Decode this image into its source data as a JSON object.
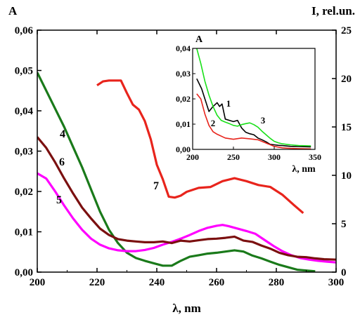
{
  "chart_data": [
    {
      "type": "line",
      "x_label": "λ, nm",
      "y_label_left": "A",
      "y_label_right": "I, rel.un.",
      "xlim": [
        200,
        300
      ],
      "ylim_left": [
        0,
        0.06
      ],
      "ylim_right": [
        0,
        25
      ],
      "x_ticks": [
        "200",
        "220",
        "240",
        "260",
        "280",
        "300"
      ],
      "y_ticks_left": [
        "0,00",
        "0,01",
        "0,02",
        "0,03",
        "0,04",
        "0,05",
        "0,06"
      ],
      "y_ticks_right": [
        "0",
        "5",
        "10",
        "15",
        "20",
        "25"
      ],
      "series": [
        {
          "name": "4",
          "axis": "left",
          "color": "#1a7a1a",
          "x": [
            200,
            203,
            206,
            209,
            212,
            215,
            218,
            221,
            224,
            227,
            230,
            233,
            236,
            239,
            242,
            245,
            248,
            251,
            254,
            257,
            260,
            263,
            266,
            269,
            272,
            275,
            278,
            281,
            284,
            287,
            290,
            293
          ],
          "y": [
            0.0495,
            0.045,
            0.0405,
            0.036,
            0.031,
            0.026,
            0.0205,
            0.015,
            0.0105,
            0.0072,
            0.0048,
            0.0035,
            0.0028,
            0.0022,
            0.0016,
            0.0016,
            0.0028,
            0.0038,
            0.0042,
            0.0046,
            0.0048,
            0.0051,
            0.0054,
            0.0051,
            0.0041,
            0.0034,
            0.0026,
            0.0018,
            0.0012,
            0.0006,
            0.0004,
            0.0002
          ]
        },
        {
          "name": "5",
          "axis": "left",
          "color": "#ff00ff",
          "x": [
            200,
            203,
            206,
            209,
            212,
            215,
            218,
            221,
            224,
            227,
            230,
            233,
            236,
            239,
            242,
            245,
            248,
            251,
            254,
            257,
            260,
            262,
            264,
            267,
            270,
            273,
            276,
            279,
            282,
            285,
            288,
            291,
            294,
            297,
            300
          ],
          "y": [
            0.0245,
            0.0232,
            0.02,
            0.0165,
            0.0133,
            0.0105,
            0.0083,
            0.0068,
            0.0059,
            0.0054,
            0.0052,
            0.0052,
            0.0055,
            0.006,
            0.0068,
            0.0075,
            0.0083,
            0.0092,
            0.0102,
            0.011,
            0.0115,
            0.0117,
            0.0114,
            0.0108,
            0.0102,
            0.0095,
            0.008,
            0.0065,
            0.0052,
            0.0042,
            0.0035,
            0.0031,
            0.0028,
            0.0026,
            0.0024
          ]
        },
        {
          "name": "6",
          "axis": "left",
          "color": "#7b1010",
          "x": [
            200,
            203,
            206,
            209,
            212,
            215,
            218,
            221,
            224,
            227,
            230,
            233,
            236,
            239,
            242,
            245,
            248,
            251,
            254,
            257,
            260,
            263,
            266,
            269,
            272,
            275,
            278,
            281,
            284,
            287,
            290,
            293,
            296,
            300
          ],
          "y": [
            0.0335,
            0.0308,
            0.0272,
            0.0232,
            0.0195,
            0.016,
            0.0133,
            0.0108,
            0.0092,
            0.0082,
            0.0078,
            0.0076,
            0.0074,
            0.0074,
            0.0076,
            0.0072,
            0.0078,
            0.0076,
            0.0079,
            0.0082,
            0.0083,
            0.0085,
            0.0088,
            0.0078,
            0.0075,
            0.0066,
            0.0058,
            0.0048,
            0.0042,
            0.0038,
            0.0037,
            0.0034,
            0.0032,
            0.0031
          ]
        },
        {
          "name": "7",
          "axis": "right",
          "color": "#e8241c",
          "x": [
            220,
            222,
            224,
            226,
            228,
            230,
            232,
            234,
            236,
            238,
            240,
            242,
            244,
            246,
            248,
            250,
            254,
            258,
            262,
            266,
            270,
            274,
            278,
            282,
            286,
            289
          ],
          "y": [
            19.3,
            19.7,
            19.8,
            19.8,
            19.8,
            18.5,
            17.3,
            16.8,
            15.6,
            13.7,
            11.1,
            9.6,
            7.8,
            7.7,
            7.9,
            8.3,
            8.7,
            8.8,
            9.4,
            9.7,
            9.4,
            9.0,
            8.8,
            8.0,
            6.9,
            6.1
          ]
        }
      ],
      "curve_labels": [
        "4",
        "5",
        "6",
        "7"
      ]
    },
    {
      "type": "line",
      "inset": true,
      "x_label": "λ, nm",
      "y_label": "A",
      "xlim": [
        200,
        350
      ],
      "ylim": [
        0,
        0.04
      ],
      "x_ticks": [
        "200",
        "250",
        "300",
        "350"
      ],
      "y_ticks": [
        "0,00",
        "0,01",
        "0,02",
        "0,03",
        "0,04"
      ],
      "series": [
        {
          "name": "1",
          "color": "#000000",
          "x": [
            205,
            208,
            211,
            215,
            220,
            225,
            230,
            233,
            236,
            240,
            245,
            250,
            255,
            260,
            265,
            270,
            275,
            280,
            285,
            290,
            295,
            300,
            305,
            310,
            320,
            330,
            345
          ],
          "y": [
            0.028,
            0.026,
            0.024,
            0.02,
            0.015,
            0.017,
            0.0185,
            0.017,
            0.018,
            0.012,
            0.0115,
            0.011,
            0.0115,
            0.0085,
            0.0068,
            0.0062,
            0.0058,
            0.0045,
            0.0038,
            0.003,
            0.002,
            0.0018,
            0.0016,
            0.0015,
            0.0012,
            0.0011,
            0.001
          ]
        },
        {
          "name": "2",
          "color": "#e8241c",
          "x": [
            205,
            210,
            215,
            220,
            225,
            230,
            240,
            250,
            260,
            270,
            280,
            290,
            300,
            310,
            320,
            330,
            345
          ],
          "y": [
            0.022,
            0.02,
            0.014,
            0.0095,
            0.007,
            0.006,
            0.0045,
            0.004,
            0.0045,
            0.0042,
            0.0038,
            0.0025,
            0.0012,
            0.0006,
            0.0004,
            0.0003,
            0.0002
          ]
        },
        {
          "name": "3",
          "color": "#19e019",
          "x": [
            205,
            210,
            215,
            220,
            225,
            230,
            235,
            240,
            245,
            250,
            255,
            260,
            265,
            270,
            275,
            280,
            285,
            290,
            295,
            300,
            305,
            310,
            315,
            320,
            330,
            345
          ],
          "y": [
            0.04,
            0.034,
            0.027,
            0.0215,
            0.017,
            0.0135,
            0.0115,
            0.0108,
            0.0102,
            0.0095,
            0.0092,
            0.0098,
            0.0102,
            0.0105,
            0.0098,
            0.0088,
            0.0072,
            0.0058,
            0.0044,
            0.0032,
            0.0026,
            0.0022,
            0.002,
            0.0018,
            0.0015,
            0.0014
          ]
        }
      ],
      "curve_labels": [
        "1",
        "2",
        "3"
      ]
    }
  ]
}
